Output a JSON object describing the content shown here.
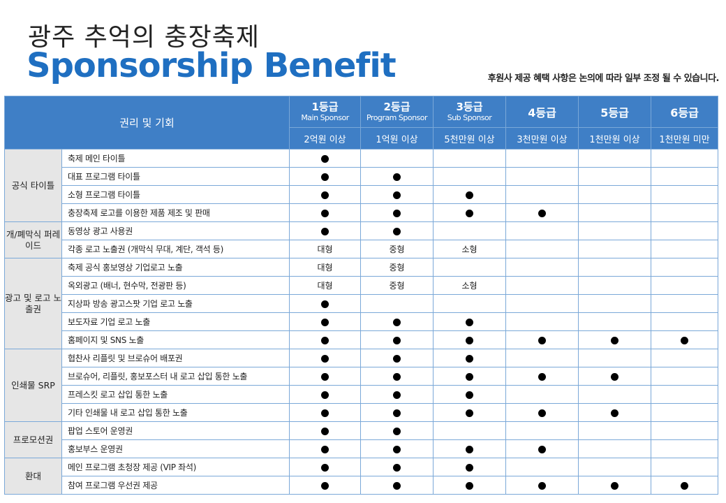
{
  "header": {
    "title_ko": "광주 추억의 충장축제",
    "title_en": "Sponsorship Benefit",
    "notice": "후원사 제공 혜택 사항은 논의에 따라 일부 조정 될 수 있습니다."
  },
  "table": {
    "rights_header": "권리 및 기회",
    "grades": [
      {
        "name": "1등급",
        "sub": "Main Sponsor",
        "amount": "2억원 이상"
      },
      {
        "name": "2등급",
        "sub": "Program Sponsor",
        "amount": "1억원 이상"
      },
      {
        "name": "3등급",
        "sub": "Sub Sponsor",
        "amount": "5천만원 이상"
      },
      {
        "name": "4등급",
        "sub": "",
        "amount": "3천만원 이상"
      },
      {
        "name": "5등급",
        "sub": "",
        "amount": "1천만원 이상"
      },
      {
        "name": "6등급",
        "sub": "",
        "amount": "1천만원 미만"
      }
    ],
    "groups": [
      {
        "category": "공식 타이틀",
        "rows": [
          {
            "label": "축제 메인 타이틀",
            "cells": [
              "●",
              "",
              "",
              "",
              "",
              ""
            ]
          },
          {
            "label": "대표 프로그램 타이틀",
            "cells": [
              "●",
              "●",
              "",
              "",
              "",
              ""
            ]
          },
          {
            "label": "소형 프로그램 타이틀",
            "cells": [
              "●",
              "●",
              "●",
              "",
              "",
              ""
            ]
          },
          {
            "label": "충장축제 로고를 이용한 제품 제조 및 판매",
            "cells": [
              "●",
              "●",
              "●",
              "●",
              "",
              ""
            ]
          }
        ]
      },
      {
        "category": "개/폐막식 퍼레이드",
        "rows": [
          {
            "label": "동영상 광고 사용권",
            "cells": [
              "●",
              "●",
              "",
              "",
              "",
              ""
            ]
          },
          {
            "label": "각종 로고 노출권 (개막식 무대, 계단, 객석 등)",
            "cells": [
              "대형",
              "중형",
              "소형",
              "",
              "",
              ""
            ]
          }
        ]
      },
      {
        "category": "광고 및 로고 노출권",
        "rows": [
          {
            "label": "축제 공식 홍보영상 기업로고 노출",
            "cells": [
              "대형",
              "중형",
              "",
              "",
              "",
              ""
            ]
          },
          {
            "label": "옥외광고 (배너, 현수막, 전광판 등)",
            "cells": [
              "대형",
              "중형",
              "소형",
              "",
              "",
              ""
            ]
          },
          {
            "label": "지상파 방송 광고스팟 기업 로고 노출",
            "cells": [
              "●",
              "",
              "",
              "",
              "",
              ""
            ]
          },
          {
            "label": "보도자료 기업 로고 노출",
            "cells": [
              "●",
              "●",
              "●",
              "",
              "",
              ""
            ]
          },
          {
            "label": "홈페이지 및 SNS 노출",
            "cells": [
              "●",
              "●",
              "●",
              "●",
              "●",
              "●"
            ]
          }
        ]
      },
      {
        "category": "인쇄물 SRP",
        "rows": [
          {
            "label": "협찬사 리플릿 및 브로슈어 배포권",
            "cells": [
              "●",
              "●",
              "●",
              "",
              "",
              ""
            ]
          },
          {
            "label": "브로슈어, 리플릿, 홍보포스터 내 로고 삽입 통한 노출",
            "cells": [
              "●",
              "●",
              "●",
              "●",
              "●",
              ""
            ]
          },
          {
            "label": "프레스킷 로고 삽입 통한 노출",
            "cells": [
              "●",
              "●",
              "●",
              "",
              "",
              ""
            ]
          },
          {
            "label": "기타 인쇄물 내 로고 삽입 통한 노출",
            "cells": [
              "●",
              "●",
              "●",
              "●",
              "●",
              ""
            ]
          }
        ]
      },
      {
        "category": "프로모션권",
        "rows": [
          {
            "label": "팝업 스토어 운영권",
            "cells": [
              "●",
              "●",
              "",
              "",
              "",
              ""
            ]
          },
          {
            "label": "홍보부스 운영권",
            "cells": [
              "●",
              "●",
              "●",
              "●",
              "",
              ""
            ]
          }
        ]
      },
      {
        "category": "환대",
        "rows": [
          {
            "label": "메인 프로그램 초청장 제공 (VIP 좌석)",
            "cells": [
              "●",
              "●",
              "●",
              "",
              "",
              ""
            ]
          },
          {
            "label": "참여 프로그램 우선권 제공",
            "cells": [
              "●",
              "●",
              "●",
              "●",
              "●",
              "●"
            ]
          }
        ]
      }
    ]
  }
}
